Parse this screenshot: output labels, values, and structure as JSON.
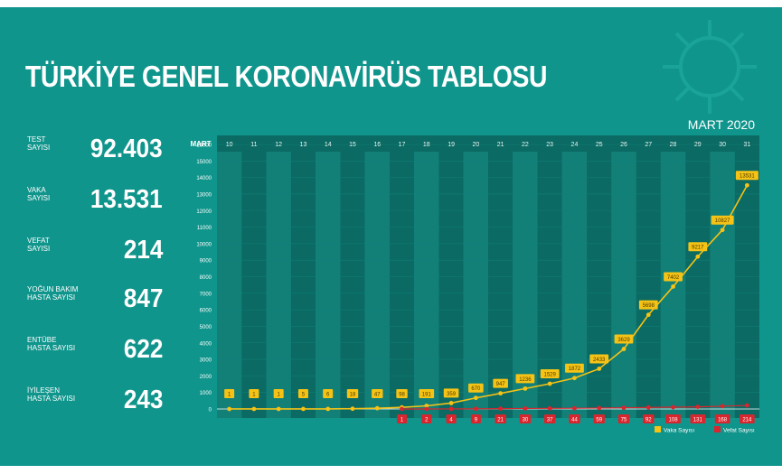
{
  "title": "TÜRKİYE GENEL KORONAVİRÜS TABLOSU",
  "month_label": "MART 2020",
  "stats": [
    {
      "label": "TEST\nSAYISI",
      "value": "92.403"
    },
    {
      "label": "VAKA\nSAYISI",
      "value": "13.531"
    },
    {
      "label": "VEFAT\nSAYISI",
      "value": "214"
    },
    {
      "label": "YOĞUN BAKIM\nHASTA SAYISI",
      "value": "847"
    },
    {
      "label": "ENTÜBE\nHASTA SAYISI",
      "value": "622"
    },
    {
      "label": "İYİLEŞEN\nHASTA SAYISI",
      "value": "243"
    }
  ],
  "colors": {
    "background": "#10958c",
    "band_dark": "#0b6a63",
    "band_light": "#138078",
    "cases": "#f5c216",
    "deaths": "#d9262e"
  },
  "chart_data": {
    "type": "line",
    "xlabel": "MART",
    "categories": [
      "10",
      "11",
      "12",
      "13",
      "14",
      "15",
      "16",
      "17",
      "18",
      "19",
      "20",
      "21",
      "22",
      "23",
      "24",
      "25",
      "26",
      "27",
      "28",
      "29",
      "30",
      "31"
    ],
    "ylim": [
      0,
      16000
    ],
    "yticks": [
      0,
      1000,
      2000,
      3000,
      4000,
      5000,
      6000,
      7000,
      8000,
      9000,
      10000,
      11000,
      12000,
      13000,
      14000,
      15000,
      16000
    ],
    "series": [
      {
        "name": "Vaka Sayısı",
        "color": "#f5c216",
        "values": [
          1,
          1,
          1,
          5,
          6,
          18,
          47,
          98,
          191,
          359,
          670,
          947,
          1236,
          1529,
          1872,
          2433,
          3629,
          5698,
          7402,
          9217,
          10827,
          13531
        ]
      },
      {
        "name": "Vefat Sayısı",
        "color": "#d9262e",
        "values": [
          null,
          null,
          null,
          null,
          null,
          null,
          null,
          1,
          2,
          4,
          9,
          21,
          30,
          37,
          44,
          59,
          75,
          92,
          108,
          131,
          168,
          214
        ]
      }
    ],
    "legend": "bottom-right"
  }
}
